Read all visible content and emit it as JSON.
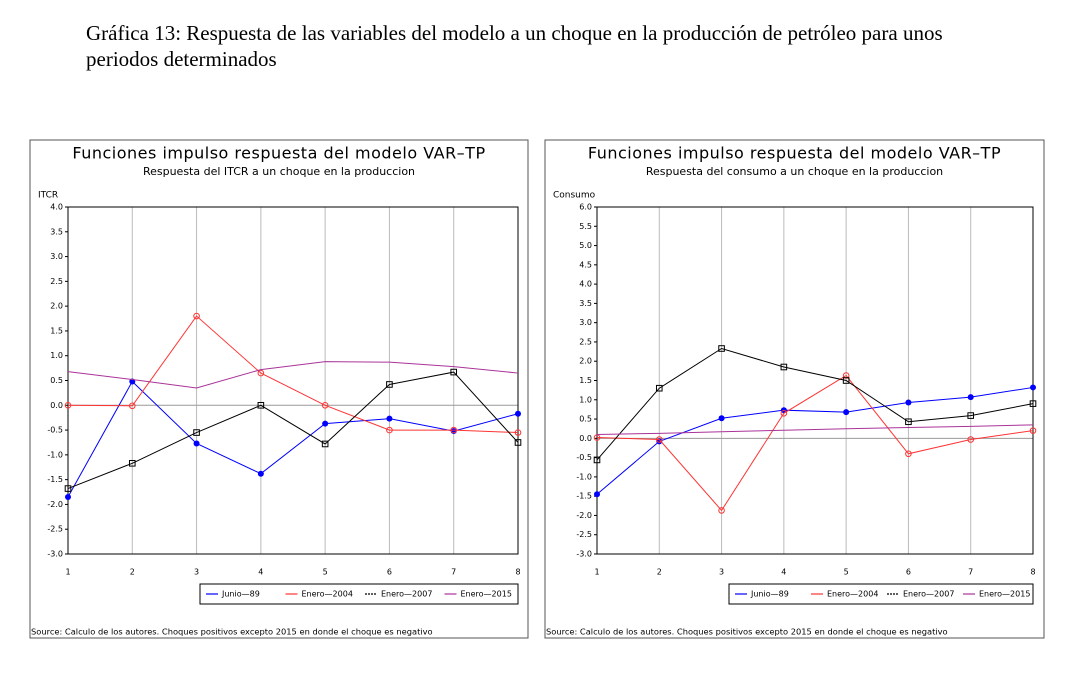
{
  "heading": "Gráfica 13: Respuesta de las variables del modelo a un choque en la producción de petróleo para unos periodos determinados",
  "chart_data": [
    {
      "type": "line",
      "title": "Funciones impulso respuesta del modelo VAR–TP",
      "subtitle": "Respuesta del ITCR a un choque en la produccion",
      "ylabel": "ITCR",
      "note": "Source: Calculo de los autores. Choques positivos excepto 2015 en donde el choque es negativo",
      "x": [
        1,
        2,
        3,
        4,
        5,
        6,
        7,
        8
      ],
      "xlim": [
        1,
        8
      ],
      "xticks": [
        1,
        2,
        3,
        4,
        5,
        6,
        7,
        8
      ],
      "ylim": [
        -3,
        4
      ],
      "yticks": [
        {
          "value": 4,
          "label": "4.0"
        },
        {
          "value": 3.5,
          "label": "3.5"
        },
        {
          "value": 3,
          "label": "3.0"
        },
        {
          "value": 2.5,
          "label": "2.5"
        },
        {
          "value": 2,
          "label": "2.0"
        },
        {
          "value": 1.5,
          "label": "1.5"
        },
        {
          "value": 1,
          "label": "1.0"
        },
        {
          "value": 0.5,
          "label": "0.5"
        },
        {
          "value": 0,
          "label": "0.0"
        },
        {
          "value": -0.5,
          "label": "-0.5"
        },
        {
          "value": -1,
          "label": "-1.0"
        },
        {
          "value": -1.5,
          "label": "-1.5"
        },
        {
          "value": -2,
          "label": "-2.0"
        },
        {
          "value": -2.5,
          "label": "-2.5"
        },
        {
          "value": -3,
          "label": "-3.0"
        }
      ],
      "series": [
        {
          "name": "Junio—89",
          "color": "#0000ff",
          "marker": "dot",
          "values": [
            -1.85,
            0.48,
            -0.77,
            -1.38,
            -0.37,
            -0.27,
            -0.52,
            -0.17
          ]
        },
        {
          "name": "Enero—2004",
          "color": "#ff3333",
          "marker": "circle",
          "values": [
            0.0,
            -0.01,
            1.8,
            0.65,
            0.0,
            -0.5,
            -0.5,
            -0.55
          ]
        },
        {
          "name": "Enero—2007",
          "color": "#000000",
          "marker": "square",
          "values": [
            -1.68,
            -1.17,
            -0.55,
            0.0,
            -0.78,
            0.42,
            0.67,
            -0.75
          ]
        },
        {
          "name": "Enero—2015",
          "color": "#aa3399",
          "marker": "none",
          "values": [
            0.68,
            0.52,
            0.35,
            0.72,
            0.88,
            0.87,
            0.78,
            0.65
          ]
        }
      ]
    },
    {
      "type": "line",
      "title": "Funciones impulso respuesta del modelo VAR–TP",
      "subtitle": "Respuesta del consumo a un choque en la produccion",
      "ylabel": "Consumo",
      "note": "Source: Calculo de los autores. Choques positivos excepto 2015 en donde el choque es negativo",
      "x": [
        1,
        2,
        3,
        4,
        5,
        6,
        7,
        8
      ],
      "xlim": [
        1,
        8
      ],
      "xticks": [
        1,
        2,
        3,
        4,
        5,
        6,
        7,
        8
      ],
      "ylim": [
        -3,
        6
      ],
      "yticks": [
        {
          "value": 6,
          "label": "6.0"
        },
        {
          "value": 5.5,
          "label": "5.5"
        },
        {
          "value": 5,
          "label": "5.0"
        },
        {
          "value": 4.5,
          "label": "4.5"
        },
        {
          "value": 4,
          "label": "4.0"
        },
        {
          "value": 3.5,
          "label": "3.5"
        },
        {
          "value": 3,
          "label": "3.0"
        },
        {
          "value": 2.5,
          "label": "2.5"
        },
        {
          "value": 2,
          "label": "2.0"
        },
        {
          "value": 1.5,
          "label": "1.5"
        },
        {
          "value": 1,
          "label": "1.0"
        },
        {
          "value": 0.5,
          "label": "0.5"
        },
        {
          "value": 0,
          "label": "0.0"
        },
        {
          "value": -0.5,
          "label": "-0.5"
        },
        {
          "value": -1,
          "label": "-1.0"
        },
        {
          "value": -1.5,
          "label": "-1.5"
        },
        {
          "value": -2,
          "label": "-2.0"
        },
        {
          "value": -2.5,
          "label": "-2.5"
        },
        {
          "value": -3,
          "label": "-3.0"
        }
      ],
      "series": [
        {
          "name": "Junio—89",
          "color": "#0000ff",
          "marker": "dot",
          "values": [
            -1.45,
            -0.08,
            0.52,
            0.73,
            0.68,
            0.93,
            1.07,
            1.32
          ]
        },
        {
          "name": "Enero—2004",
          "color": "#ff3333",
          "marker": "circle",
          "values": [
            0.02,
            -0.03,
            -1.87,
            0.65,
            1.63,
            -0.4,
            -0.03,
            0.2
          ]
        },
        {
          "name": "Enero—2007",
          "color": "#000000",
          "marker": "square",
          "values": [
            -0.56,
            1.3,
            2.33,
            1.85,
            1.5,
            0.43,
            0.59,
            0.9
          ]
        },
        {
          "name": "Enero—2015",
          "color": "#aa3399",
          "marker": "none",
          "values": [
            0.1,
            0.13,
            0.17,
            0.21,
            0.25,
            0.28,
            0.31,
            0.35
          ]
        }
      ]
    }
  ]
}
